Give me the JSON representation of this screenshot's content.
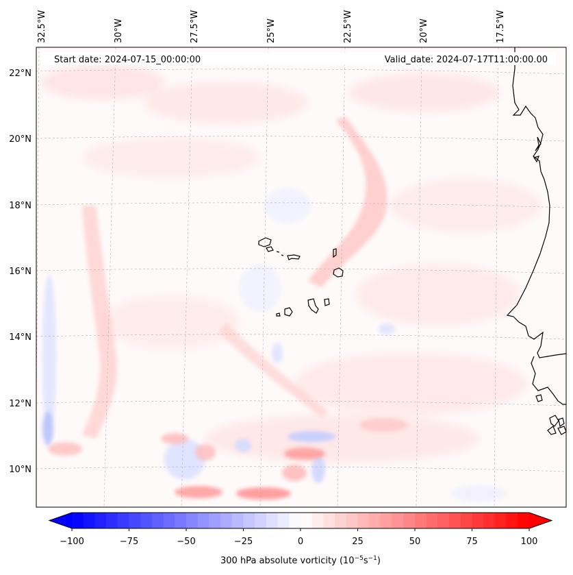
{
  "map": {
    "start_label": "Start date: 2024-07-15_00:00:00",
    "valid_label": "Valid_date: 2024-07-17T11:00:00.00",
    "lon_labels": [
      "32.5°W",
      "30°W",
      "27.5°W",
      "25°W",
      "22.5°W",
      "20°W",
      "17.5°W"
    ],
    "lat_labels": [
      "22°N",
      "20°N",
      "18°N",
      "16°N",
      "14°N",
      "12°N",
      "10°N"
    ],
    "field": "300 hPa absolute vorticity",
    "colors": {
      "coast": "#000000",
      "grid": "#b0b0b0",
      "neg": "#0000ff",
      "zero": "#ffffff",
      "pos": "#ff0000"
    }
  },
  "colorbar": {
    "ticks": [
      "−100",
      "−75",
      "−50",
      "−25",
      "0",
      "25",
      "50",
      "75",
      "100"
    ],
    "label_prefix": "300 hPa absolute vorticity (10",
    "label_exp1": "−5",
    "label_mid": "s",
    "label_exp2": "−1",
    "label_suffix": ")",
    "min": -100,
    "max": 100
  }
}
